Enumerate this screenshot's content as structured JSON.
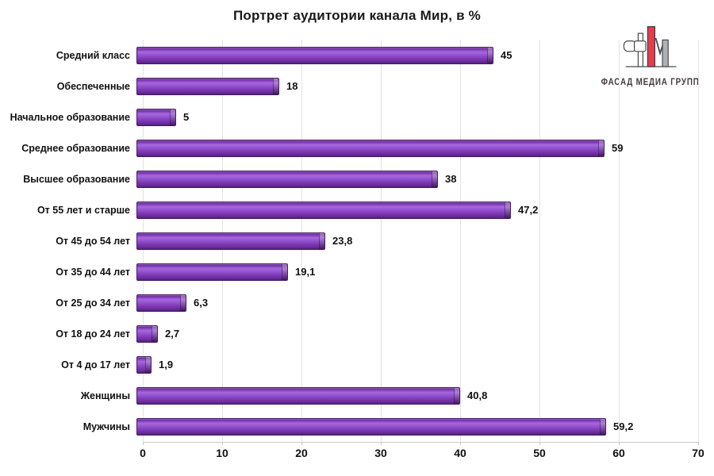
{
  "logo": {
    "text": "ФАСАД МЕДИА ГРУПП"
  },
  "colors": {
    "bar_purple": "#8639BE",
    "bar_outline": "#451E66",
    "logo_red": "#E63C50",
    "logo_gray": "#A6A9AD",
    "logo_outline": "#4A4A4E",
    "gridline": "#E3E3E3",
    "axis_line": "#C9C9C9",
    "text": "#111111"
  },
  "chart_data": {
    "type": "bar",
    "orientation": "horizontal",
    "title": "Портрет аудитории канала Мир, в %",
    "categories": [
      "Средний класс",
      "Обеспеченные",
      "Начальное образование",
      "Среднее образование",
      "Высшее образование",
      "От 55 лет и старше",
      "От 45 до 54 лет",
      "От 35 до 44 лет",
      "От 25 до 34 лет",
      "От 18 до 24 лет",
      "От 4 до 17 лет",
      "Женщины",
      "Мужчины"
    ],
    "values": [
      45,
      18,
      5,
      59,
      38,
      47.2,
      23.8,
      19.1,
      6.3,
      2.7,
      1.9,
      40.8,
      59.2
    ],
    "value_labels": [
      "45",
      "18",
      "5",
      "59",
      "38",
      "47,2",
      "23,8",
      "19,1",
      "6,3",
      "2,7",
      "1,9",
      "40,8",
      "59,2"
    ],
    "xlabel": "",
    "ylabel": "",
    "xlim": [
      0,
      70
    ],
    "xticks": [
      0,
      10,
      20,
      30,
      40,
      50,
      60,
      70
    ],
    "grid": true,
    "legend": false
  }
}
